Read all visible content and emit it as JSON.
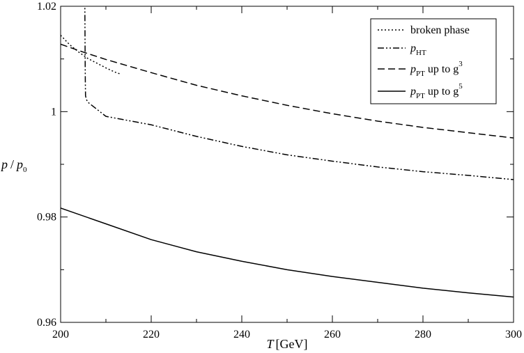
{
  "chart_data": {
    "type": "line",
    "xlabel": {
      "symbol": "T",
      "unit": "[GeV]"
    },
    "ylabel": {
      "num": "p",
      "slash": "/",
      "den": "p",
      "den_sub": "0"
    },
    "xlim": [
      200,
      300
    ],
    "ylim": [
      0.96,
      1.02
    ],
    "x_ticks": [
      200,
      220,
      240,
      260,
      280,
      300
    ],
    "y_ticks": [
      0.96,
      0.98,
      1.0,
      1.02
    ],
    "y_tick_labels": [
      "0.96",
      "0.98",
      "1",
      "1.02"
    ],
    "x_minor_step": 10,
    "y_minor_step": 0.01,
    "grid": false,
    "legend_position": "top-right",
    "series": [
      {
        "key": "broken",
        "legend": {
          "main": "broken phase"
        },
        "dash": "2,3",
        "x": [
          200,
          202,
          204,
          206,
          208,
          210,
          212,
          213
        ],
        "y": [
          1.0145,
          1.0127,
          1.0113,
          1.0101,
          1.0092,
          1.0083,
          1.0075,
          1.0072
        ]
      },
      {
        "key": "pht",
        "legend": {
          "main": "p",
          "sub": "HT"
        },
        "dash": "9,3,2,3,2,3",
        "x": [
          205.3,
          205.35,
          205.4,
          205.45,
          205.5,
          205.7,
          206,
          210,
          220,
          230,
          240,
          250,
          260,
          270,
          280,
          290,
          300
        ],
        "y": [
          1.03,
          1.02,
          1.012,
          1.006,
          1.003,
          1.0023,
          1.0018,
          0.9991,
          0.9975,
          0.9953,
          0.9934,
          0.9918,
          0.9906,
          0.9895,
          0.9886,
          0.9879,
          0.9871
        ]
      },
      {
        "key": "pt3",
        "legend": {
          "main": "p",
          "sub": "PT",
          "rest": " up to g",
          "sup": "3"
        },
        "dash": "10,5",
        "x": [
          200,
          205,
          210,
          220,
          230,
          240,
          250,
          260,
          270,
          280,
          290,
          300
        ],
        "y": [
          1.0128,
          1.0113,
          1.0099,
          1.0074,
          1.005,
          1.003,
          1.0012,
          0.9996,
          0.9982,
          0.997,
          0.996,
          0.995
        ]
      },
      {
        "key": "pt5",
        "legend": {
          "main": "p",
          "sub": "PT",
          "rest": " up to g",
          "sup": "5"
        },
        "dash": "",
        "x": [
          200,
          210,
          220,
          230,
          240,
          250,
          260,
          270,
          280,
          290,
          300
        ],
        "y": [
          0.9817,
          0.9787,
          0.9757,
          0.9734,
          0.9716,
          0.97,
          0.9687,
          0.9676,
          0.9665,
          0.9656,
          0.9648
        ]
      }
    ]
  }
}
